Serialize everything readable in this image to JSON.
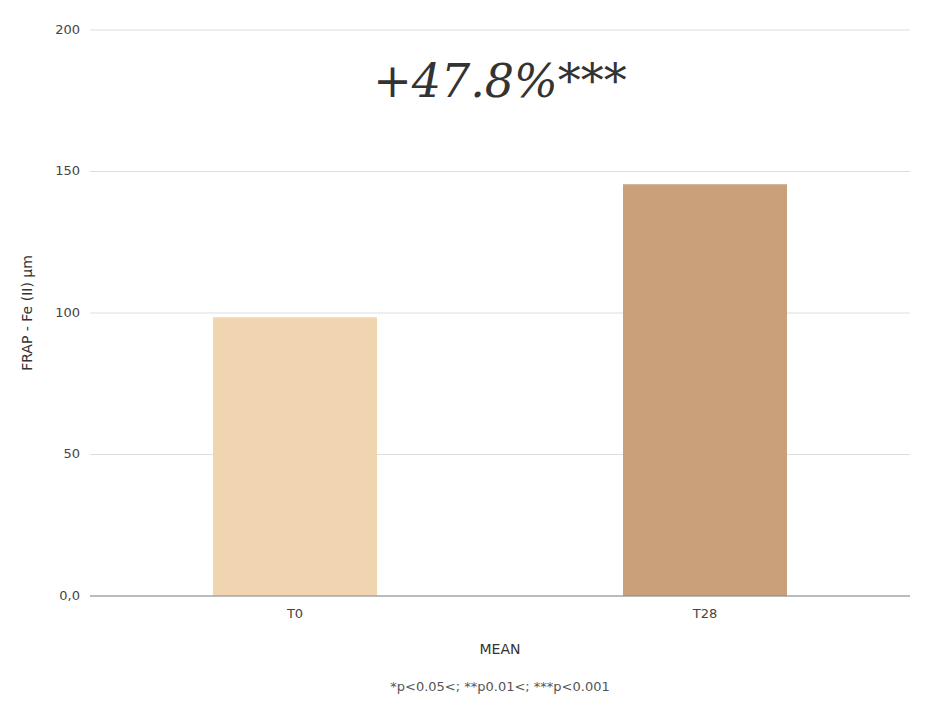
{
  "chart_data": {
    "type": "bar",
    "categories": [
      "T0",
      "T28"
    ],
    "values": [
      98.5,
      145.5
    ],
    "colors": [
      "#f0d5b0",
      "#c9a07a"
    ],
    "ylim": [
      0,
      200
    ],
    "yticks": [
      {
        "value": 0,
        "label": "0,0"
      },
      50,
      100,
      150,
      200
    ],
    "ylabel": "FRAP - Fe (II) μm",
    "xlabel": "MEAN",
    "annotation": "+47.8%***",
    "footnote": "*p<0.05<; **p0.01<; ***p<0.001",
    "grid": true
  }
}
